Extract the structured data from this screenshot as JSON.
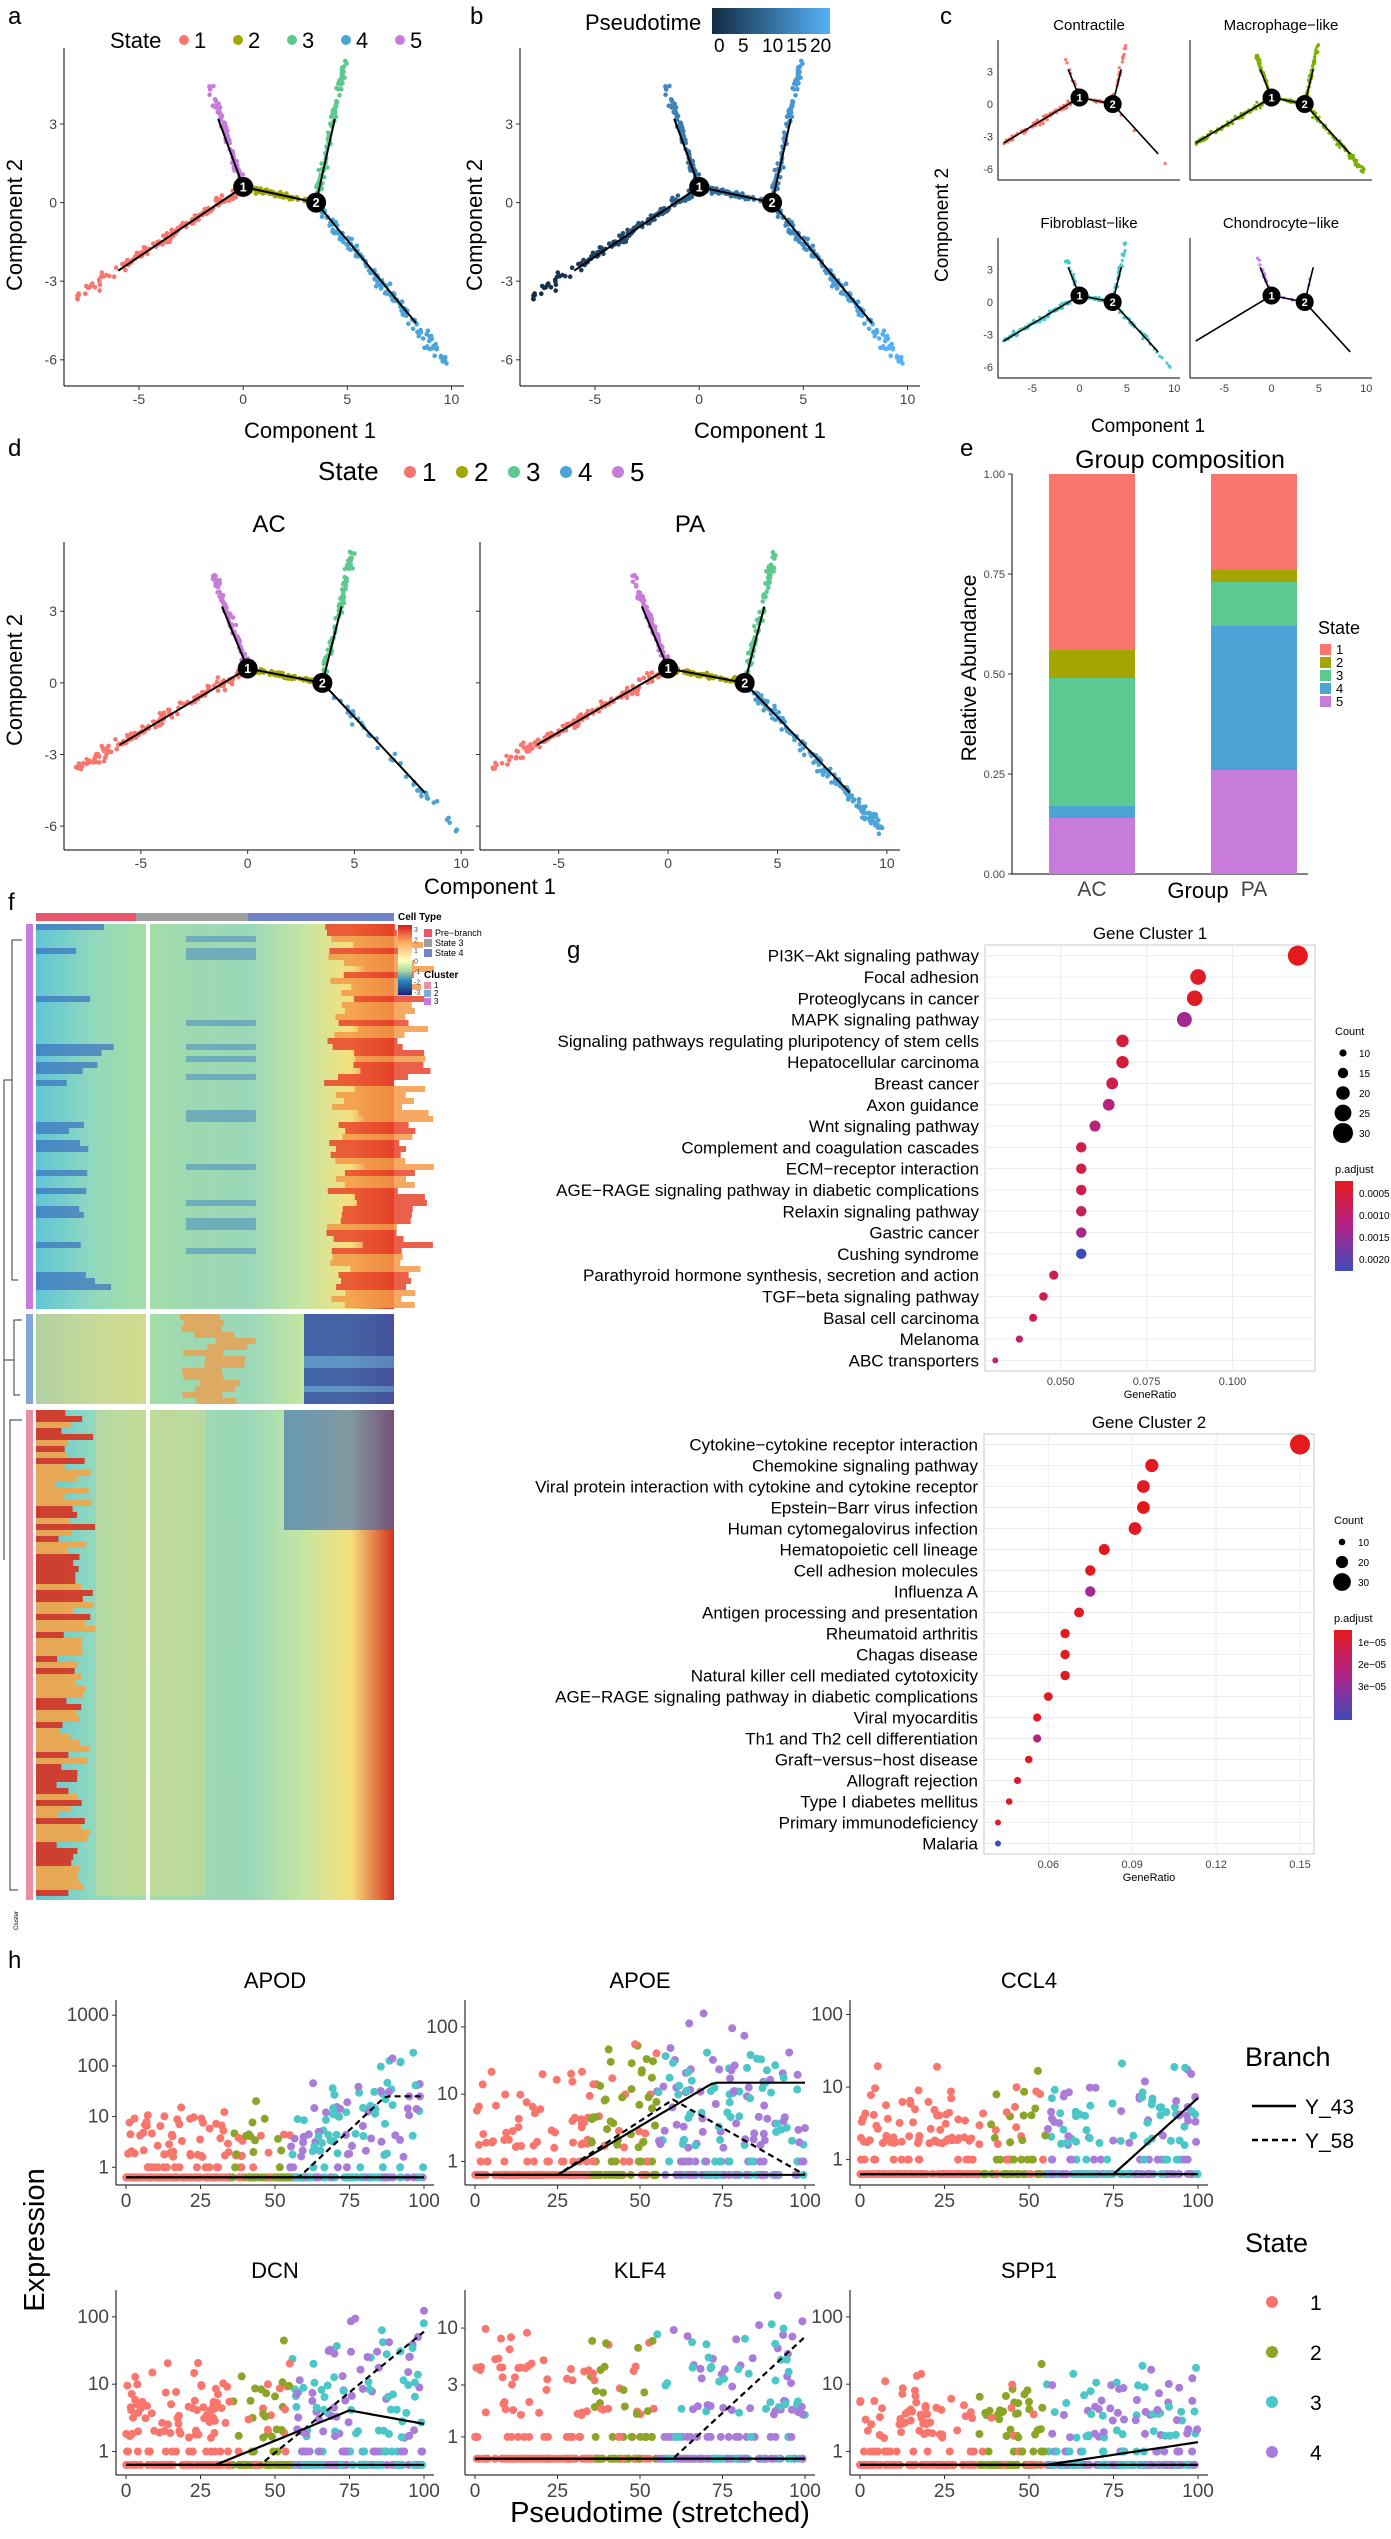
{
  "colors": {
    "state1": "#F8766D",
    "state2": "#A3A500",
    "state3": "#5CC990",
    "state4": "#4CA3D6",
    "state5": "#C77CDB",
    "h_state1": "#F8766D",
    "h_state2": "#8CA427",
    "h_state3": "#4CC7C7",
    "h_state4": "#A87CD8"
  },
  "panel_letters": {
    "a": "a",
    "b": "b",
    "c": "c",
    "d": "d",
    "e": "e",
    "f": "f",
    "g": "g",
    "h": "h"
  },
  "panel_a": {
    "legend_title": "State",
    "states": [
      "1",
      "2",
      "3",
      "4",
      "5"
    ],
    "xlabel": "Component 1",
    "ylabel": "Component 2",
    "xticks": [
      "-5",
      "0",
      "5",
      "10"
    ],
    "yticks": [
      "3",
      "0",
      "-3",
      "-6"
    ],
    "nodes": [
      "1",
      "2"
    ]
  },
  "panel_b": {
    "legend_title": "Pseudotime",
    "ticks": [
      "0",
      "5",
      "10",
      "15",
      "20"
    ],
    "xlabel": "Component 1",
    "ylabel": "Component 2",
    "xticks": [
      "-5",
      "0",
      "5",
      "10"
    ],
    "yticks": [
      "3",
      "0",
      "-3",
      "-6"
    ],
    "nodes": [
      "1",
      "2"
    ]
  },
  "panel_c": {
    "facets": [
      "Contractile",
      "Macrophage−like",
      "Fibroblast−like",
      "Chondrocyte−like"
    ],
    "xlabel": "Component 1",
    "ylabel": "Component 2",
    "xticks": [
      "-5",
      "0",
      "5",
      "10"
    ],
    "yticks": [
      "3",
      "0",
      "-3",
      "-6"
    ],
    "nodes": [
      "1",
      "2"
    ]
  },
  "panel_d": {
    "legend_title": "State",
    "states": [
      "1",
      "2",
      "3",
      "4",
      "5"
    ],
    "facets": [
      "AC",
      "PA"
    ],
    "xlabel": "Component 1",
    "ylabel": "Component 2",
    "xticks": [
      "-5",
      "0",
      "5",
      "10"
    ],
    "yticks": [
      "3",
      "0",
      "-3",
      "-6"
    ],
    "nodes": [
      "1",
      "2"
    ]
  },
  "panel_f": {
    "legend_cell_type_title": "Cell Type",
    "cell_types": [
      "Pre−branch",
      "State 3",
      "State 4"
    ],
    "legend_cluster_title": "Cluster",
    "clusters": [
      "1",
      "2",
      "3"
    ],
    "scale_ticks": [
      "3",
      "2",
      "1",
      "0",
      "-1",
      "-2",
      "-3"
    ],
    "row_label": "Cluster"
  },
  "chart_data": [
    {
      "type": "bar",
      "title": "Group composition",
      "xlabel": "Group",
      "ylabel": "Relative Abundance",
      "categories": [
        "AC",
        "PA"
      ],
      "ylim": [
        0,
        1
      ],
      "yticks": [
        "0.00",
        "0.25",
        "0.50",
        "0.75",
        "1.00"
      ],
      "legend_title": "State",
      "stacked": true,
      "series": [
        {
          "name": "5",
          "values": [
            0.14,
            0.26
          ]
        },
        {
          "name": "4",
          "values": [
            0.03,
            0.36
          ]
        },
        {
          "name": "3",
          "values": [
            0.32,
            0.11
          ]
        },
        {
          "name": "2",
          "values": [
            0.07,
            0.03
          ]
        },
        {
          "name": "1",
          "values": [
            0.44,
            0.24
          ]
        }
      ]
    },
    {
      "type": "scatter",
      "title": "Gene Cluster 1",
      "xlabel": "GeneRatio",
      "xlim": [
        0.028,
        0.124
      ],
      "xticks": [
        "0.050",
        "0.075",
        "0.100"
      ],
      "size_legend_title": "Count",
      "size_legend": [
        "10",
        "15",
        "20",
        "25",
        "30"
      ],
      "color_legend_title": "p.adjust",
      "color_legend": [
        "0.0005",
        "0.0010",
        "0.0015",
        "0.0020"
      ],
      "terms": [
        "PI3K−Akt signaling pathway",
        "Focal adhesion",
        "Proteoglycans in cancer",
        "MAPK signaling pathway",
        "Signaling pathways regulating pluripotency of stem cells",
        "Hepatocellular carcinoma",
        "Breast cancer",
        "Axon guidance",
        "Wnt signaling pathway",
        "Complement and coagulation cascades",
        "ECM−receptor interaction",
        "AGE−RAGE signaling pathway in diabetic complications",
        "Relaxin signaling pathway",
        "Gastric cancer",
        "Cushing syndrome",
        "Parathyroid hormone synthesis, secretion and action",
        "TGF−beta signaling pathway",
        "Basal cell carcinoma",
        "Melanoma",
        "ABC transporters"
      ],
      "gene_ratio": [
        0.119,
        0.09,
        0.089,
        0.086,
        0.068,
        0.068,
        0.065,
        0.064,
        0.06,
        0.056,
        0.056,
        0.056,
        0.056,
        0.056,
        0.056,
        0.048,
        0.045,
        0.042,
        0.038,
        0.031
      ],
      "count": [
        30,
        23,
        23,
        22,
        18,
        18,
        17,
        17,
        16,
        15,
        15,
        15,
        15,
        15,
        15,
        13,
        12,
        11,
        10,
        8
      ],
      "p_adjust": [
        0.0001,
        0.0002,
        0.0002,
        0.0013,
        0.0004,
        0.0004,
        0.0006,
        0.001,
        0.001,
        0.0005,
        0.0005,
        0.0005,
        0.0007,
        0.0012,
        0.0022,
        0.0006,
        0.0006,
        0.0006,
        0.0008,
        0.0009
      ]
    },
    {
      "type": "scatter",
      "title": "Gene Cluster 2",
      "xlabel": "GeneRatio",
      "xlim": [
        0.037,
        0.155
      ],
      "xticks": [
        "0.06",
        "0.09",
        "0.12",
        "0.15"
      ],
      "size_legend_title": "Count",
      "size_legend": [
        "10",
        "20",
        "30"
      ],
      "color_legend_title": "p.adjust",
      "color_legend": [
        "1e−05",
        "2e−05",
        "3e−05"
      ],
      "terms": [
        "Cytokine−cytokine receptor interaction",
        "Chemokine signaling pathway",
        "Viral protein interaction with cytokine and cytokine receptor",
        "Epstein−Barr virus infection",
        "Human cytomegalovirus infection",
        "Hematopoietic cell lineage",
        "Cell adhesion molecules",
        "Influenza A",
        "Antigen processing and presentation",
        "Rheumatoid arthritis",
        "Chagas disease",
        "Natural killer cell mediated cytotoxicity",
        "AGE−RAGE signaling pathway in diabetic complications",
        "Viral myocarditis",
        "Th1 and Th2 cell differentiation",
        "Graft−versus−host disease",
        "Allograft rejection",
        "Type I diabetes mellitus",
        "Primary immunodeficiency",
        "Malaria"
      ],
      "gene_ratio": [
        0.15,
        0.097,
        0.094,
        0.094,
        0.091,
        0.08,
        0.075,
        0.075,
        0.071,
        0.066,
        0.066,
        0.066,
        0.06,
        0.056,
        0.056,
        0.053,
        0.049,
        0.046,
        0.042,
        0.042
      ],
      "count": [
        34,
        22,
        21,
        21,
        21,
        18,
        17,
        17,
        16,
        15,
        15,
        15,
        14,
        13,
        13,
        12,
        11,
        10,
        9,
        9
      ],
      "p_adjust": [
        5e-07,
        1e-06,
        1e-06,
        1e-06,
        2e-06,
        1e-06,
        1e-06,
        1.8e-05,
        2e-06,
        1e-06,
        2e-06,
        2e-06,
        2e-06,
        2e-06,
        1.5e-05,
        2e-06,
        2e-06,
        2e-06,
        2e-06,
        3.2e-05
      ]
    },
    {
      "type": "scatter",
      "title": "h",
      "xlabel": "Pseudotime (stretched)",
      "ylabel": "Expression",
      "xticks": [
        "0",
        "25",
        "50",
        "75",
        "100"
      ],
      "branch_legend_title": "Branch",
      "branches": [
        "Y_43",
        "Y_58"
      ],
      "state_legend_title": "State",
      "states": [
        "1",
        "2",
        "3",
        "4"
      ],
      "panels": [
        {
          "gene": "APOD",
          "yticks": [
            "1",
            "10",
            "100",
            "1000"
          ],
          "ymax_log": 3.3
        },
        {
          "gene": "APOE",
          "yticks": [
            "1",
            "10",
            "100"
          ],
          "ymax_log": 2.4
        },
        {
          "gene": "CCL4",
          "yticks": [
            "1",
            "10",
            "100"
          ],
          "ymax_log": 2.2
        },
        {
          "gene": "DCN",
          "yticks": [
            "1",
            "10",
            "100"
          ],
          "ymax_log": 2.4
        },
        {
          "gene": "KLF4",
          "yticks": [
            "1",
            "3",
            "10"
          ],
          "ymax_log": 1.35
        },
        {
          "gene": "SPP1",
          "yticks": [
            "1",
            "10",
            "100"
          ],
          "ymax_log": 2.4
        }
      ]
    }
  ]
}
